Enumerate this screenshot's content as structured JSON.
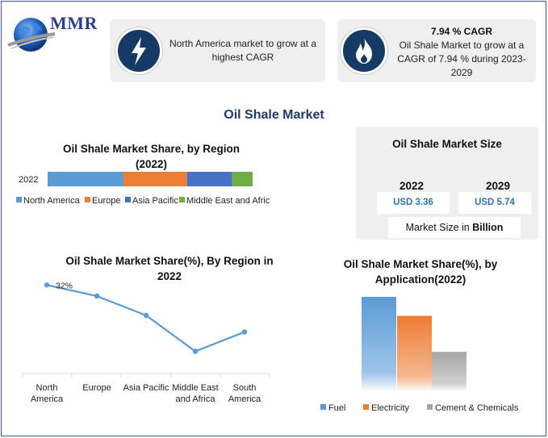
{
  "brand": {
    "logo_text": "MMR"
  },
  "highlights": [
    {
      "icon": "lightning-icon",
      "heading": "",
      "text": "North America market to grow at a highest CAGR"
    },
    {
      "icon": "flame-icon",
      "heading": "7.94 % CAGR",
      "text": "Oil Shale Market to grow at a CAGR of 7.94 % during 2023-2029"
    }
  ],
  "main_title": "Oil Shale Market",
  "market_size": {
    "title": "Oil Shale Market Size",
    "years": [
      "2022",
      "2029"
    ],
    "values": [
      "USD 3.36",
      "USD 5.74"
    ],
    "unit_prefix": "Market Size in ",
    "unit_bold": "Billion"
  },
  "colors": {
    "blue": "#5b9bd5",
    "orange": "#ed7d31",
    "dark_blue": "#4472c4",
    "green": "#70ad47",
    "gray": "#a5a5a5",
    "line": "#5b9bd5",
    "card_icon": "#163a66"
  },
  "chart_data": [
    {
      "type": "bar",
      "orientation": "horizontal-stacked",
      "title_line1": "Oil Shale Market Share, by Region",
      "title_line2": "(2022)",
      "categories": [
        "2022"
      ],
      "series": [
        {
          "name": "North America",
          "values": [
            37
          ]
        },
        {
          "name": "Europe",
          "values": [
            31
          ]
        },
        {
          "name": "Asia Pacific",
          "values": [
            22
          ]
        },
        {
          "name": "Middle East and Afric",
          "values": [
            10
          ]
        }
      ],
      "legend": "bottom"
    },
    {
      "type": "line",
      "title_line1": "Oil Shale Market Share(%), By Region in",
      "title_line2": "2022",
      "categories": [
        [
          "North",
          "America"
        ],
        [
          "Europe"
        ],
        [
          "Asia Pacific"
        ],
        [
          "Middle East",
          "and Africa"
        ],
        [
          "South",
          "America"
        ]
      ],
      "values": [
        32,
        28,
        21,
        8,
        15
      ],
      "data_labels": [
        "32%",
        "",
        "",
        "",
        ""
      ],
      "ylim": [
        0,
        35
      ]
    },
    {
      "type": "bar",
      "title_line1": "Oil Shale Market Share(%), by",
      "title_line2": "Application(2022)",
      "series": [
        {
          "name": "Fuel",
          "values": [
            45
          ]
        },
        {
          "name": "Electricity",
          "values": [
            36
          ]
        },
        {
          "name": "Cement & Chemicals",
          "values": [
            19
          ]
        }
      ],
      "ylim": [
        0,
        45
      ],
      "legend": "bottom"
    }
  ]
}
